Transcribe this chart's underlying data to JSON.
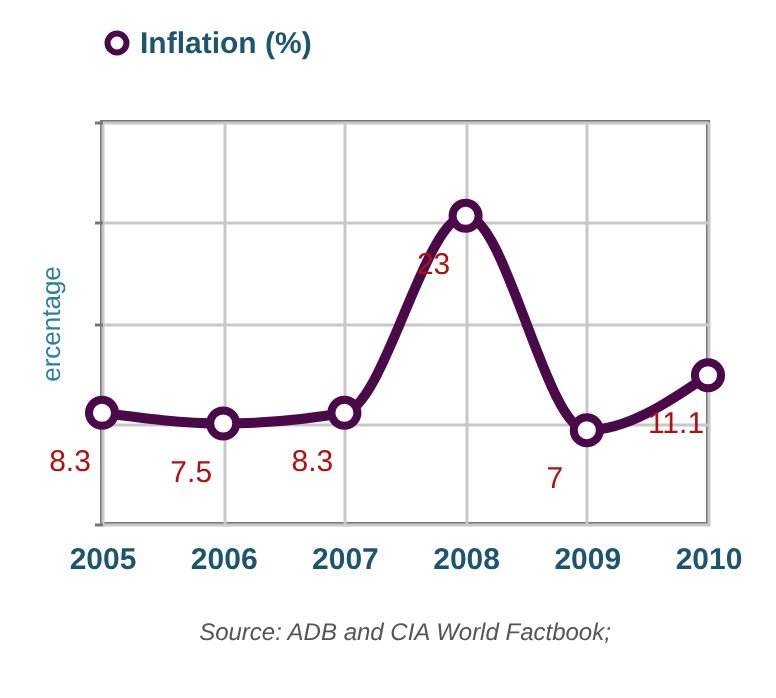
{
  "chart_data": {
    "type": "line",
    "ylabel": "ercentage",
    "annotations": [
      "Source: ADB and CIA World Factbook;"
    ],
    "categories": [
      "2005",
      "2006",
      "2007",
      "2008",
      "2009",
      "2010"
    ],
    "series": [
      {
        "name": "Inflation (%)",
        "color": "#4a0a4a",
        "values": [
          8.3,
          7.5,
          8.3,
          23,
          7,
          11.1
        ]
      }
    ],
    "ylim": [
      0,
      30
    ],
    "yticks": [
      {
        "value": 0,
        "label": null
      },
      {
        "value": 7.5,
        "label": null
      },
      {
        "value": 15,
        "label": null
      },
      {
        "value": 22.5,
        "label": null
      },
      {
        "value": 30,
        "label": null
      }
    ],
    "grid": true,
    "legend": "top",
    "marker": "circle",
    "line_style": "solid",
    "data_labels": true,
    "tick_labels": "x"
  }
}
